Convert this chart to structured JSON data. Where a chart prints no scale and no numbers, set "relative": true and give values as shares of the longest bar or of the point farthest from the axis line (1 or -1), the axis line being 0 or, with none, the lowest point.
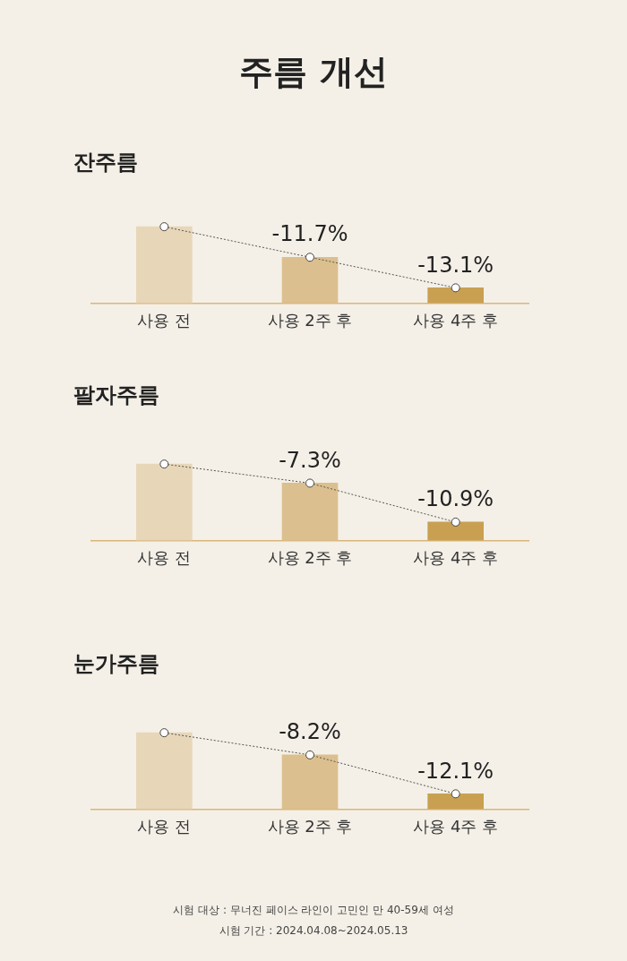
{
  "chart_data": [
    {
      "type": "bar",
      "title": "주름 개선",
      "subtitle": "잔주름",
      "categories": [
        "사용 전",
        "사용 2주 후",
        "사용 4주 후"
      ],
      "relative": true,
      "legend": false,
      "grid": false,
      "marker": "circle",
      "line_style": "dotted",
      "series": [
        {
          "colors": [
            "#e8d6b8",
            "#dcbf8e",
            "#c9a052"
          ],
          "values": [
            1,
            0.6,
            0.2
          ]
        },
        {
          "type": "line",
          "color": "#555555",
          "values": [
            1,
            0.6,
            0.2
          ]
        }
      ],
      "annotations": [
        {
          "text": "-11.7%",
          "x": "사용 2주 후",
          "y": 0.6
        },
        {
          "text": "-13.1%",
          "x": "사용 4주 후",
          "y": 0.2
        }
      ]
    },
    {
      "type": "bar",
      "title": "팔자주름",
      "categories": [
        "사용 전",
        "사용 2주 후",
        "사용 4주 후"
      ],
      "relative": true,
      "legend": false,
      "grid": false,
      "marker": "circle",
      "line_style": "dotted",
      "series": [
        {
          "colors": [
            "#e8d6b8",
            "#dcbf8e",
            "#c9a052"
          ],
          "values": [
            1,
            0.75,
            0.24
          ]
        },
        {
          "type": "line",
          "color": "#555555",
          "values": [
            1,
            0.75,
            0.24
          ]
        }
      ],
      "annotations": [
        {
          "text": "-7.3%",
          "x": "사용 2주 후",
          "y": 0.75
        },
        {
          "text": "-10.9%",
          "x": "사용 4주 후",
          "y": 0.24
        }
      ]
    },
    {
      "type": "bar",
      "title": "눈가주름",
      "categories": [
        "사용 전",
        "사용 2주 후",
        "사용 4주 후"
      ],
      "relative": true,
      "legend": false,
      "grid": false,
      "marker": "circle",
      "line_style": "dotted",
      "series": [
        {
          "colors": [
            "#e8d6b8",
            "#dcbf8e",
            "#c9a052"
          ],
          "values": [
            1,
            0.71,
            0.2
          ]
        },
        {
          "type": "line",
          "color": "#555555",
          "values": [
            1,
            0.71,
            0.2
          ]
        }
      ],
      "annotations": [
        {
          "text": "-8.2%",
          "x": "사용 2주 후",
          "y": 0.71
        },
        {
          "text": "-12.1%",
          "x": "사용 4주 후",
          "y": 0.2
        },
        "시험 대상 : 무너진 페이스 라인이 고민인 만 40-59세 여성",
        "시험 기간 : 2024.04.08~2024.05.13"
      ]
    }
  ]
}
